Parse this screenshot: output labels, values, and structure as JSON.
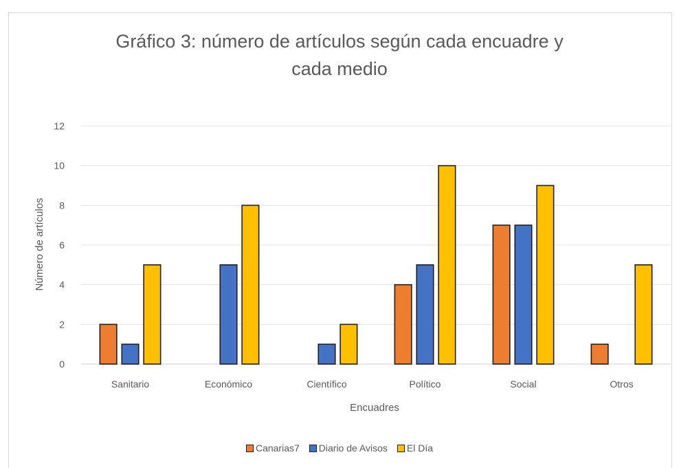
{
  "chart_data": {
    "type": "bar",
    "title": "Gráfico 3: número de artículos según cada encuadre y cada medio",
    "title_lines": [
      "Gráfico 3: número de artículos según cada encuadre y",
      "cada medio"
    ],
    "xlabel": "Encuadres",
    "ylabel": "Número de artículos",
    "categories": [
      "Sanitario",
      "Económico",
      "Científico",
      "Político",
      "Social",
      "Otros"
    ],
    "series": [
      {
        "name": "Canarias7",
        "color": "#ed7d31",
        "values": [
          2,
          0,
          0,
          4,
          7,
          1
        ]
      },
      {
        "name": "Diario de Avisos",
        "color": "#4472c4",
        "values": [
          1,
          5,
          1,
          5,
          7,
          0
        ]
      },
      {
        "name": "El Día",
        "color": "#ffc000",
        "values": [
          5,
          8,
          2,
          10,
          9,
          5
        ]
      }
    ],
    "ylim": [
      0,
      12
    ],
    "yticks": [
      0,
      2,
      4,
      6,
      8,
      10,
      12
    ],
    "grid": true,
    "legend_position": "bottom"
  }
}
